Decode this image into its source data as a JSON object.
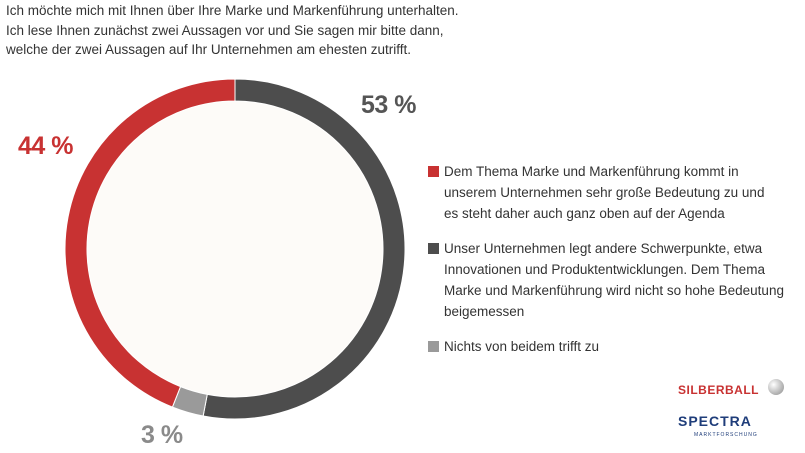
{
  "question": {
    "line1": "Ich möchte mich mit Ihnen über Ihre Marke und Markenführung unterhalten.",
    "line2": "Ich lese Ihnen zunächst zwei Aussagen vor und Sie sagen mir bitte dann,",
    "line3": "welche der zwei Aussagen auf Ihr Unternehmen am ehesten zutrifft."
  },
  "chart_data": {
    "type": "pie",
    "variant": "donut",
    "slices": [
      {
        "value": 44,
        "label": "44 %",
        "color": "#c83232",
        "legend": [
          "Dem Thema Marke und Markenführung kommt in",
          "unserem Unternehmen sehr große Bedeutung zu und",
          "es steht daher auch ganz oben auf der Agenda"
        ]
      },
      {
        "value": 53,
        "label": "53 %",
        "color": "#4d4d4d",
        "legend": [
          "Unser Unternehmen legt andere Schwerpunkte, etwa",
          "Innovationen und Produktentwicklungen. Dem Thema",
          "Marke und Markenführung wird nicht so hohe Bedeutung",
          "beigemessen"
        ]
      },
      {
        "value": 3,
        "label": "3 %",
        "color": "#9a9a9a",
        "legend": [
          "Nichts von beidem trifft zu"
        ]
      }
    ],
    "legend_position": "right",
    "center_color": "#fdfbf8"
  },
  "logos": {
    "silberball": {
      "text": "SILBERBALL",
      "color": "#c83232"
    },
    "spectra": {
      "text": "SPECTRA",
      "sub": "MARKTFORSCHUNG",
      "color": "#1f3d7a"
    }
  }
}
